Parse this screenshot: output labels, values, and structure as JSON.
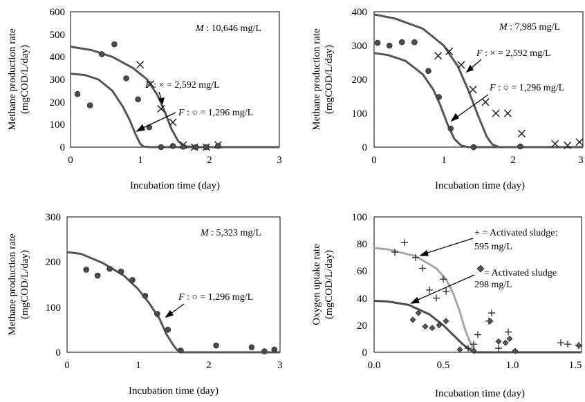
{
  "chart_data": [
    {
      "type": "scatter",
      "xlabel": "Incubation time (day)",
      "ylabel": [
        "Methane production rate",
        "(mgCOD/L/day)"
      ],
      "xlim": [
        0,
        3
      ],
      "ylim": [
        0,
        600
      ],
      "xticks": [
        "0",
        "1",
        "2",
        "3"
      ],
      "yticks": [
        "0",
        "100",
        "200",
        "300",
        "400",
        "500",
        "600"
      ],
      "annotation_title": {
        "label": "M",
        "value": " : 10,646 mg/L"
      },
      "annotations": [
        {
          "label": "F",
          "text": " : × = 2,592 mg/L"
        },
        {
          "label": "F",
          "text": " : ○ = 1,296 mg/L"
        }
      ],
      "series": [
        {
          "marker": "x",
          "x": [
            1.0,
            1.15,
            1.3,
            1.47,
            1.62,
            1.78,
            1.95,
            2.12
          ],
          "y": [
            365,
            280,
            170,
            110,
            10,
            0,
            0,
            10
          ]
        },
        {
          "marker": "dot",
          "x": [
            0.1,
            0.28,
            0.45,
            0.63,
            0.8,
            0.97,
            1.13,
            1.3,
            1.47,
            1.62,
            1.8,
            1.95,
            2.12
          ],
          "y": [
            235,
            185,
            412,
            456,
            305,
            212,
            88,
            0,
            5,
            2,
            0,
            0,
            5
          ]
        },
        {
          "marker": "line",
          "x": [
            0,
            0.3,
            0.6,
            0.9,
            1.1,
            1.25,
            1.35,
            1.45,
            1.55,
            1.65,
            1.8,
            3.0
          ],
          "y": [
            445,
            430,
            400,
            350,
            300,
            230,
            160,
            80,
            25,
            4,
            0,
            0
          ]
        },
        {
          "marker": "line",
          "x": [
            0,
            0.2,
            0.4,
            0.6,
            0.75,
            0.85,
            0.93,
            1.0,
            1.05,
            1.15,
            3.0
          ],
          "y": [
            325,
            320,
            300,
            250,
            180,
            120,
            60,
            15,
            2,
            0,
            0
          ]
        }
      ]
    },
    {
      "type": "scatter",
      "xlabel": "Incubation time (day)",
      "ylabel": [
        "Methane production rate",
        "(mgCOD/L/day)"
      ],
      "xlim": [
        0,
        3
      ],
      "ylim": [
        0,
        400
      ],
      "xticks": [
        "0",
        "1",
        "2",
        "3"
      ],
      "yticks": [
        "0",
        "100",
        "200",
        "300",
        "400"
      ],
      "annotation_title": {
        "label": "M",
        "value": " : 7,985  mg/L"
      },
      "annotations": [
        {
          "label": "F",
          "text": " : × = 2,592 mg/L"
        },
        {
          "label": "F",
          "text": " : ○ = 1,296 mg/L"
        }
      ],
      "series": [
        {
          "marker": "x",
          "x": [
            0.92,
            1.08,
            1.25,
            1.42,
            1.6,
            1.75,
            1.92,
            2.12,
            2.6,
            2.78,
            2.95
          ],
          "y": [
            270,
            283,
            243,
            170,
            133,
            100,
            100,
            40,
            10,
            5,
            15
          ]
        },
        {
          "marker": "dot",
          "x": [
            0.05,
            0.22,
            0.4,
            0.58,
            0.78,
            0.93,
            1.1,
            1.43,
            2.1
          ],
          "y": [
            308,
            300,
            310,
            310,
            225,
            148,
            55,
            0,
            2
          ]
        },
        {
          "marker": "line",
          "x": [
            0,
            0.3,
            0.7,
            1.0,
            1.2,
            1.35,
            1.5,
            1.62,
            1.7,
            1.8,
            3.0
          ],
          "y": [
            392,
            380,
            350,
            300,
            240,
            170,
            90,
            30,
            8,
            0,
            0
          ]
        },
        {
          "marker": "line",
          "x": [
            0,
            0.2,
            0.45,
            0.7,
            0.85,
            0.95,
            1.05,
            1.15,
            1.25,
            1.35,
            3.0
          ],
          "y": [
            278,
            272,
            255,
            215,
            170,
            125,
            70,
            25,
            5,
            0,
            0
          ]
        }
      ]
    },
    {
      "type": "scatter",
      "xlabel": "Incubation time (day)",
      "ylabel": [
        "Methane production rate",
        "(mgCOD/L/day)"
      ],
      "xlim": [
        0,
        3
      ],
      "ylim": [
        0,
        300
      ],
      "xticks": [
        "0",
        "1",
        "2",
        "3"
      ],
      "yticks": [
        "0",
        "100",
        "200",
        "300"
      ],
      "annotation_title": {
        "label": "M",
        "value": " : 5,323  mg/L"
      },
      "annotations": [
        {
          "label": "F",
          "text": " : ○ = 1,296 mg/L"
        }
      ],
      "series": [
        {
          "marker": "dot",
          "x": [
            0.27,
            0.43,
            0.6,
            0.76,
            0.92,
            1.1,
            1.27,
            1.42,
            1.6,
            2.1,
            2.6,
            2.78,
            2.92
          ],
          "y": [
            183,
            170,
            185,
            179,
            160,
            125,
            85,
            50,
            4,
            15,
            11,
            2,
            6
          ]
        },
        {
          "marker": "line",
          "x": [
            0,
            0.2,
            0.5,
            0.8,
            1.0,
            1.15,
            1.3,
            1.4,
            1.5,
            1.55,
            1.62,
            3.0
          ],
          "y": [
            222,
            218,
            198,
            170,
            140,
            110,
            75,
            40,
            15,
            5,
            0,
            0
          ]
        }
      ]
    },
    {
      "type": "scatter",
      "xlabel": "Incubation time (day)",
      "ylabel": [
        "Oxygen uptake rate",
        "(mgCOD/L/day)"
      ],
      "xlim": [
        0,
        1.5
      ],
      "ylim": [
        0,
        100
      ],
      "xticks": [
        "0.0",
        "0.5",
        "1.0",
        "1.5"
      ],
      "yticks": [
        "0",
        "20",
        "40",
        "60",
        "80",
        "100"
      ],
      "annotations": [
        {
          "line1": "+ = Activated sludge:",
          "line2": "595 mg/L"
        },
        {
          "line1": " = Activated sludge",
          "line2": "298 mg/L"
        }
      ],
      "series": [
        {
          "marker": "plus",
          "x": [
            0.15,
            0.22,
            0.3,
            0.35,
            0.4,
            0.45,
            0.5,
            0.52,
            0.68,
            0.72,
            0.75,
            0.83,
            0.85,
            0.9,
            0.97,
            1.35,
            1.4,
            1.48
          ],
          "y": [
            74,
            81,
            70,
            62,
            46,
            40,
            54,
            45,
            3,
            6,
            13,
            23,
            29,
            3,
            15,
            7,
            6,
            5
          ]
        },
        {
          "marker": "diamond",
          "x": [
            0.28,
            0.32,
            0.37,
            0.42,
            0.47,
            0.52,
            0.62,
            0.72,
            0.84,
            0.9,
            0.95,
            0.98,
            1.02,
            1.48
          ],
          "y": [
            24,
            29,
            19,
            18,
            20,
            23,
            2,
            1,
            23,
            8,
            7,
            10,
            1,
            5
          ]
        },
        {
          "marker": "line",
          "x": [
            0,
            0.1,
            0.3,
            0.45,
            0.52,
            0.57,
            0.62,
            0.66,
            0.7,
            0.74,
            1.5
          ],
          "y": [
            77,
            76,
            71,
            62,
            54,
            44,
            30,
            16,
            6,
            0,
            0
          ]
        },
        {
          "marker": "line",
          "x": [
            0,
            0.1,
            0.25,
            0.4,
            0.5,
            0.58,
            0.64,
            0.69,
            0.73,
            1.5
          ],
          "y": [
            38,
            37.5,
            35,
            28,
            20,
            12,
            6,
            2,
            0,
            0
          ]
        }
      ]
    }
  ]
}
